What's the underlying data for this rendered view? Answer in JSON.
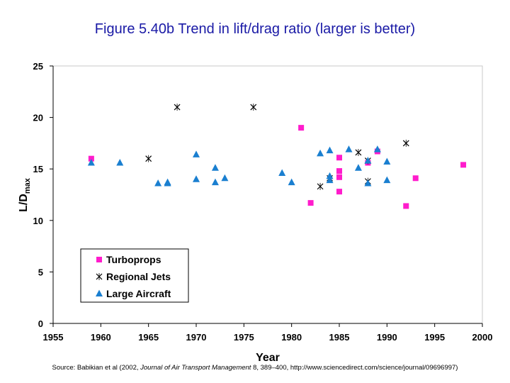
{
  "title": "Figure 5.40b Trend in lift/drag ratio (larger is better)",
  "source": {
    "before": "Source: Babikian et al (2002, ",
    "journal": "Journal of Air Transport Management",
    "after": " 8, 389–400, http://www.sciencedirect.com/science/journal/09696997)"
  },
  "colors": {
    "Turboprops": "#ff1ccc",
    "Regional Jets": "#000000",
    "Large Aircraft": "#1a7fd0",
    "title": "#1a1aa6"
  },
  "chart_data": {
    "type": "scatter",
    "title": "Figure 5.40b Trend in lift/drag ratio (larger is better)",
    "xlabel": "Year",
    "ylabel_main": "L/D",
    "ylabel_sub": "max",
    "xlim": [
      1955,
      2000
    ],
    "ylim": [
      0,
      25
    ],
    "xticks": [
      1955,
      1960,
      1965,
      1970,
      1975,
      1980,
      1985,
      1990,
      1995,
      2000
    ],
    "yticks": [
      0,
      5,
      10,
      15,
      20,
      25
    ],
    "grid": false,
    "legend_position": "bottom-left",
    "series": [
      {
        "name": "Turboprops",
        "marker": "square",
        "points": [
          [
            1959,
            16.0
          ],
          [
            1981,
            19.0
          ],
          [
            1982,
            11.7
          ],
          [
            1985,
            16.1
          ],
          [
            1985,
            14.8
          ],
          [
            1985,
            14.2
          ],
          [
            1985,
            12.8
          ],
          [
            1988,
            15.6
          ],
          [
            1989,
            16.7
          ],
          [
            1992,
            11.4
          ],
          [
            1993,
            14.1
          ],
          [
            1998,
            15.4
          ]
        ]
      },
      {
        "name": "Regional Jets",
        "marker": "x",
        "points": [
          [
            1965,
            16.0
          ],
          [
            1968,
            21.0
          ],
          [
            1976,
            21.0
          ],
          [
            1983,
            13.3
          ],
          [
            1984,
            14.1
          ],
          [
            1987,
            16.6
          ],
          [
            1988,
            15.8
          ],
          [
            1988,
            13.8
          ],
          [
            1992,
            17.5
          ]
        ]
      },
      {
        "name": "Large Aircraft",
        "marker": "triangle",
        "points": [
          [
            1959,
            15.6
          ],
          [
            1962,
            15.6
          ],
          [
            1966,
            13.6
          ],
          [
            1967,
            13.6
          ],
          [
            1967,
            13.7
          ],
          [
            1970,
            16.4
          ],
          [
            1970,
            14.0
          ],
          [
            1972,
            15.1
          ],
          [
            1972,
            13.7
          ],
          [
            1973,
            14.1
          ],
          [
            1979,
            14.6
          ],
          [
            1980,
            13.7
          ],
          [
            1983,
            16.5
          ],
          [
            1984,
            16.8
          ],
          [
            1984,
            14.3
          ],
          [
            1984,
            13.9
          ],
          [
            1986,
            16.9
          ],
          [
            1987,
            15.1
          ],
          [
            1988,
            15.8
          ],
          [
            1988,
            13.6
          ],
          [
            1989,
            16.9
          ],
          [
            1990,
            15.7
          ],
          [
            1990,
            13.9
          ]
        ]
      }
    ]
  }
}
